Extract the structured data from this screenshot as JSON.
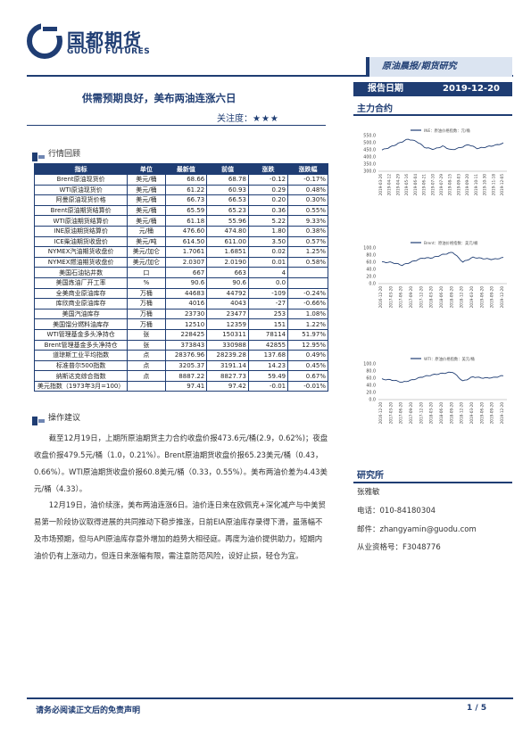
{
  "brand": {
    "name_cn": "国都期货",
    "name_en": "GUODU FUTURES"
  },
  "header": {
    "banner": "原油晨报/期货研究",
    "title": "供需预期良好，美布两油连涨六日",
    "focus_label": "关注度：",
    "focus_stars": "★★★",
    "date_label": "报告日期",
    "date_value": "2019-12-20",
    "contract_label": "主力合约"
  },
  "review": {
    "heading": "行情回顾",
    "columns": [
      "指标",
      "单位",
      "最新值",
      "前值",
      "涨跌",
      "涨跌幅"
    ],
    "rows": [
      [
        "Brent原油现货价",
        "美元/桶",
        "68.66",
        "68.78",
        "-0.12",
        "-0.17%"
      ],
      [
        "WTI原油现货价",
        "美元/桶",
        "61.22",
        "60.93",
        "0.29",
        "0.48%"
      ],
      [
        "阿曼原油现货价格",
        "美元/桶",
        "66.73",
        "66.53",
        "0.20",
        "0.30%"
      ],
      [
        "Brent原油期货结算价",
        "美元/桶",
        "65.59",
        "65.23",
        "0.36",
        "0.55%"
      ],
      [
        "WTI原油期货结算价",
        "美元/桶",
        "61.18",
        "55.96",
        "5.22",
        "9.33%"
      ],
      [
        "INE原油期货结算价",
        "元/桶",
        "476.60",
        "474.80",
        "1.80",
        "0.38%"
      ],
      [
        "ICE柴油期货收盘价",
        "美元/吨",
        "614.50",
        "611.00",
        "3.50",
        "0.57%"
      ],
      [
        "NYMEX汽油期货收盘价",
        "美元/加仑",
        "1.7061",
        "1.6851",
        "0.02",
        "1.25%"
      ],
      [
        "NYMEX燃油期货收盘价",
        "美元/加仑",
        "2.0307",
        "2.0190",
        "0.01",
        "0.58%"
      ],
      [
        "美国石油钻井数",
        "口",
        "667",
        "663",
        "4",
        ""
      ],
      [
        "美国炼油厂开工率",
        "%",
        "90.6",
        "90.6",
        "0.0",
        ""
      ],
      [
        "全美商业原油库存",
        "万桶",
        "44683",
        "44792",
        "-109",
        "-0.24%"
      ],
      [
        "库欣商业原油库存",
        "万桶",
        "4016",
        "4043",
        "-27",
        "-0.66%"
      ],
      [
        "美国汽油库存",
        "万桶",
        "23730",
        "23477",
        "253",
        "1.08%"
      ],
      [
        "美国馏分燃料油库存",
        "万桶",
        "12510",
        "12359",
        "151",
        "1.22%"
      ],
      [
        "WTI管理基金多头净持仓",
        "张",
        "228425",
        "150311",
        "78114",
        "51.97%"
      ],
      [
        "Brent管理基金多头净持仓",
        "张",
        "373843",
        "330988",
        "42855",
        "12.95%"
      ],
      [
        "道琼斯工业平均指数",
        "点",
        "28376.96",
        "28239.28",
        "137.68",
        "0.49%"
      ],
      [
        "标准普尔500指数",
        "点",
        "3205.37",
        "3191.14",
        "14.23",
        "0.45%"
      ],
      [
        "纳斯达克综合指数",
        "点",
        "8887.22",
        "8827.73",
        "59.49",
        "0.67%"
      ],
      [
        "美元指数（1973年3月=100）",
        "",
        "97.41",
        "97.42",
        "-0.01",
        "-0.01%"
      ]
    ]
  },
  "advice": {
    "heading": "操作建议",
    "p1": "截至12月19日，上期所原油期货主力合约收盘价报473.6元/桶(2.9，0.62%)；夜盘收盘价报479.5元/桶（1.0，0.21%）。Brent原油期货收盘价报65.23美元/桶（0.43，0.66%）。WTI原油期货收盘价报60.8美元/桶（0.33，0.55%）。美布两油价差为4.43美元/桶（4.33）。",
    "p2": "12月19日，油价续涨，美布两油连涨6日。油价连日来在欧佩克+深化减产与中美贸易第一阶段协议取得进展的共同推动下稳步推涨，日前EIA原油库存录得下滑，虽落幅不及市场预期，但与API原油库存意外增加的趋势大相径庭。再度为油价提供助力，短期内油价仍有上涨动力，但连日来涨幅有限，需注意防范风险，设好止损，轻仓为宜。"
  },
  "charts": [
    {
      "legend": "INE：原油价格指数：元/桶",
      "ylim": [
        300,
        550
      ],
      "ticks": [
        "550.0",
        "500.0",
        "450.0",
        "400.0",
        "350.0",
        "300.0"
      ],
      "x": [
        "2019-03-26",
        "2019-04-12",
        "2019-04-29",
        "2019-05-16",
        "2019-06-04",
        "2019-06-21",
        "2019-07-10",
        "2019-07-29",
        "2019-08-15",
        "2019-09-03",
        "2019-09-20",
        "2019-10-11",
        "2019-10-30",
        "2019-11-18",
        "2019-12-05"
      ],
      "values": [
        435,
        455,
        480,
        505,
        490,
        450,
        440,
        460,
        435,
        450,
        470,
        445,
        455,
        465,
        478
      ]
    },
    {
      "legend": "Brent：原油价格指数：美元/桶",
      "ylim": [
        0,
        100
      ],
      "ticks": [
        "100.0",
        "80.0",
        "60.0",
        "40.0",
        "20.0",
        "0.0"
      ],
      "x": [
        "2016-12-20",
        "2017-03-20",
        "2017-06-20",
        "2017-09-20",
        "2017-12-20",
        "2018-03-20",
        "2018-06-20",
        "2018-09-20",
        "2018-12-20",
        "2019-03-20",
        "2019-06-20",
        "2019-09-20",
        "2019-12-20"
      ],
      "values": [
        55,
        54,
        47,
        56,
        65,
        66,
        74,
        80,
        55,
        67,
        64,
        62,
        66
      ]
    },
    {
      "legend": "WTI：原油价格指数：美元/桶",
      "ylim": [
        0,
        100
      ],
      "ticks": [
        "100.0",
        "80.0",
        "60.0",
        "40.0",
        "20.0",
        "0.0"
      ],
      "x": [
        "2016-12-20",
        "2017-03-20",
        "2017-06-20",
        "2017-09-20",
        "2017-12-20",
        "2018-03-20",
        "2018-06-20",
        "2018-09-20",
        "2018-12-20",
        "2019-03-20",
        "2019-06-20",
        "2019-09-20",
        "2019-12-20"
      ],
      "values": [
        52,
        50,
        44,
        50,
        58,
        63,
        67,
        70,
        47,
        58,
        55,
        56,
        61
      ]
    }
  ],
  "researcher": {
    "heading": "研究所",
    "name": "张雅敏",
    "phone": "电话：010-84180304",
    "email": "邮件：zhangyamin@guodu.com",
    "cert": "从业资格号：F3048776"
  },
  "footer": {
    "disclaimer": "请务必阅读正文后的免责声明",
    "page": "1 / 5"
  }
}
